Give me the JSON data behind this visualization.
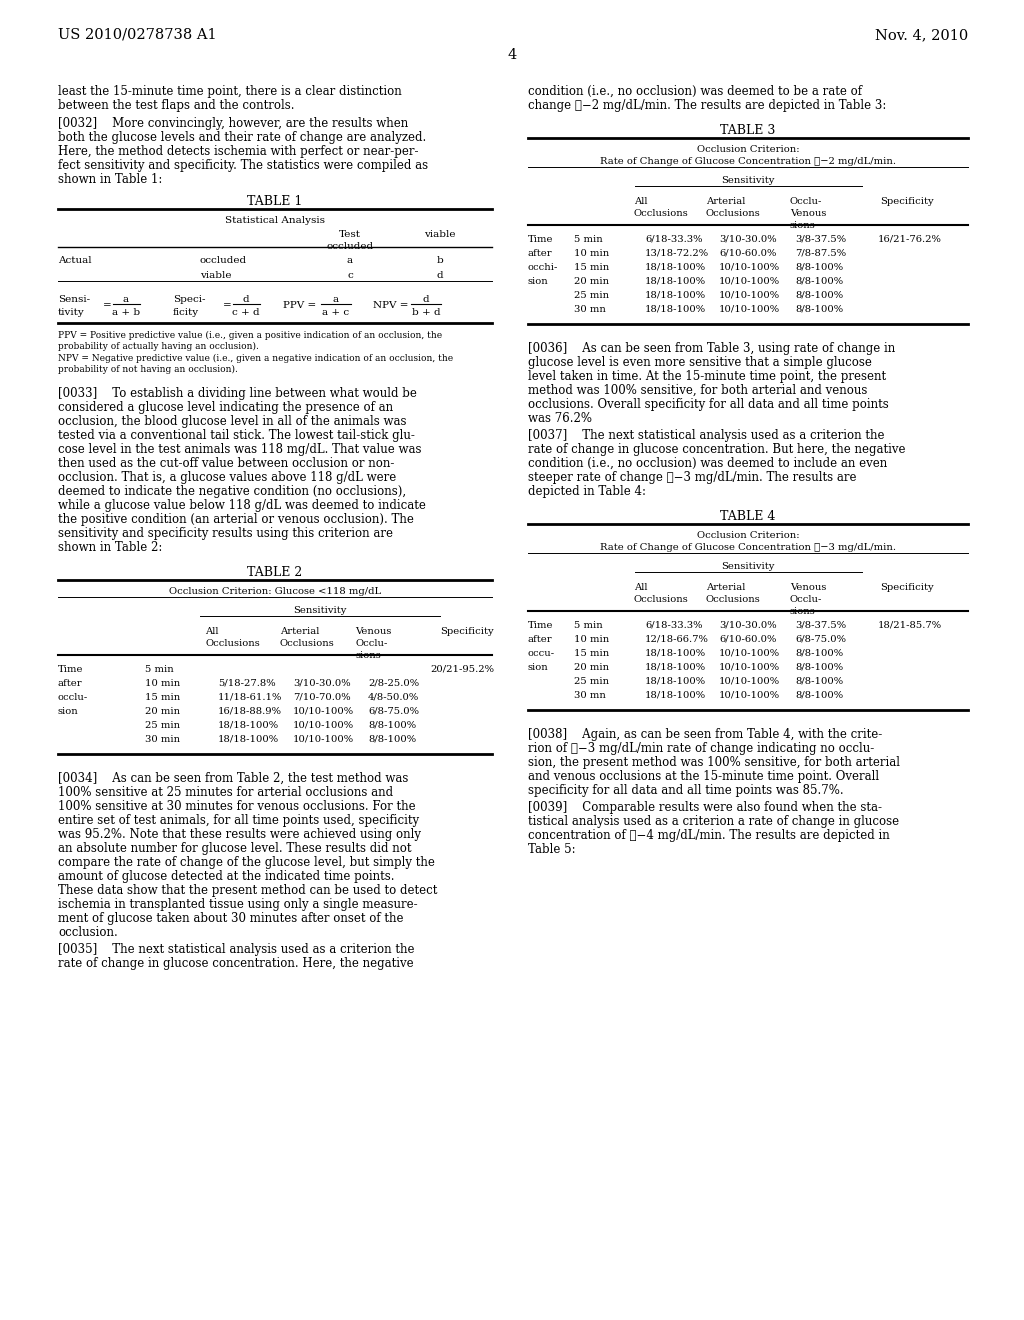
{
  "bg_color": "#ffffff",
  "header_left": "US 2010/0278738 A1",
  "header_right": "Nov. 4, 2010",
  "page_number": "4"
}
